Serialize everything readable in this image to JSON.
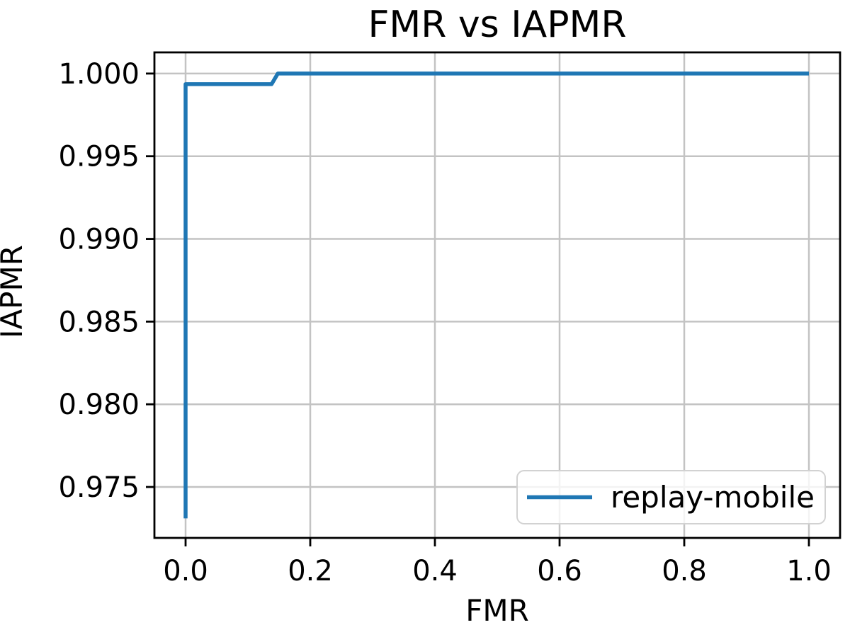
{
  "chart_data": {
    "type": "line",
    "title": "FMR vs IAPMR",
    "xlabel": "FMR",
    "ylabel": "IAPMR",
    "xlim": [
      -0.05,
      1.05
    ],
    "ylim": [
      0.97192,
      1.00128
    ],
    "grid": true,
    "x_ticks": [
      0.0,
      0.2,
      0.4,
      0.6,
      0.8,
      1.0
    ],
    "x_tick_labels": [
      "0.0",
      "0.2",
      "0.4",
      "0.6",
      "0.8",
      "1.0"
    ],
    "y_ticks": [
      0.975,
      0.98,
      0.985,
      0.99,
      0.995,
      1.0
    ],
    "y_tick_labels": [
      "0.975",
      "0.980",
      "0.985",
      "0.990",
      "0.995",
      "1.000"
    ],
    "legend": {
      "position": "lower right",
      "entries": [
        {
          "label": "replay-mobile",
          "color": "#1f77b4"
        }
      ]
    },
    "series": [
      {
        "name": "replay-mobile",
        "color": "#1f77b4",
        "points": [
          [
            0.0,
            0.9731
          ],
          [
            0.0,
            0.99936
          ],
          [
            0.138,
            0.99936
          ],
          [
            0.148,
            1.0
          ],
          [
            1.0,
            1.0
          ]
        ]
      }
    ]
  },
  "colors": {
    "line": "#1f77b4",
    "grid": "#c3c3c3",
    "spine": "#000000",
    "legend_border": "#d2d2d2",
    "legend_background": "#ffffff",
    "background": "#ffffff"
  }
}
